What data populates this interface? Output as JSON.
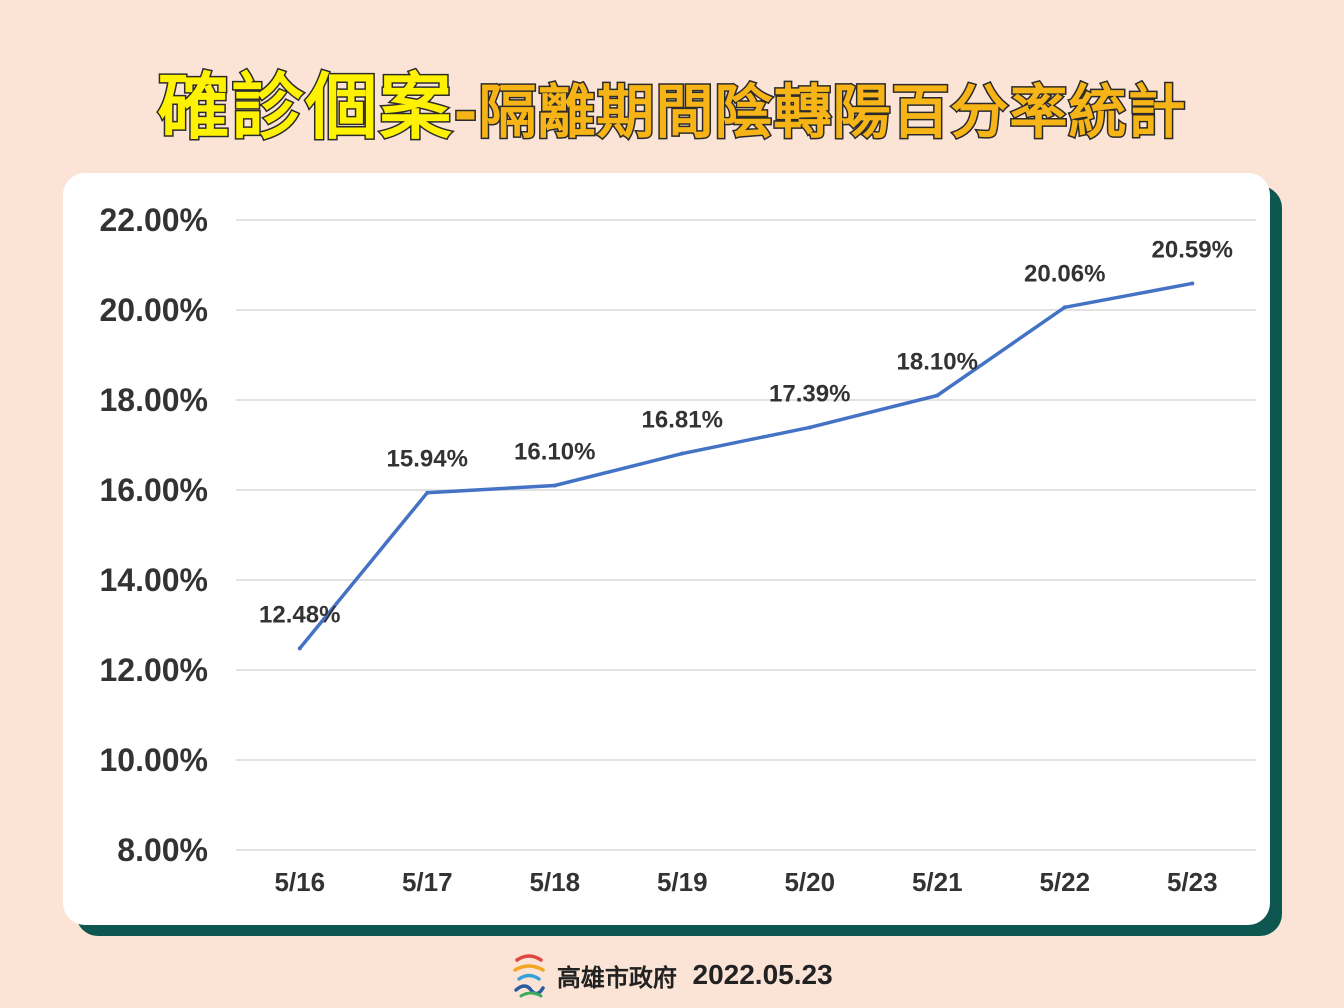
{
  "title": {
    "main": "確診個案",
    "sub": "-隔離期間陰轉陽百分率統計"
  },
  "footer": {
    "org": "高雄市政府",
    "date": "2022.05.23"
  },
  "colors": {
    "background": "#fbe4d6",
    "card_shadow": "#0e5750",
    "line": "#4472c4",
    "title_main": "#fff200",
    "title_sub": "#f6b417"
  },
  "chart_data": {
    "type": "line",
    "title": "",
    "xlabel": "",
    "ylabel": "",
    "categories": [
      "5/16",
      "5/17",
      "5/18",
      "5/19",
      "5/20",
      "5/21",
      "5/22",
      "5/23"
    ],
    "series": [
      {
        "values": [
          12.48,
          15.94,
          16.1,
          16.81,
          17.39,
          18.1,
          20.06,
          20.59
        ],
        "labels": [
          "12.48%",
          "15.94%",
          "16.10%",
          "16.81%",
          "17.39%",
          "18.10%",
          "20.06%",
          "20.59%"
        ]
      }
    ],
    "ylim": [
      8,
      22
    ],
    "yticks": [
      "8.00%",
      "10.00%",
      "12.00%",
      "14.00%",
      "16.00%",
      "18.00%",
      "20.00%",
      "22.00%"
    ],
    "ytick_values": [
      8,
      10,
      12,
      14,
      16,
      18,
      20,
      22
    ],
    "grid": true,
    "legend": "none"
  }
}
